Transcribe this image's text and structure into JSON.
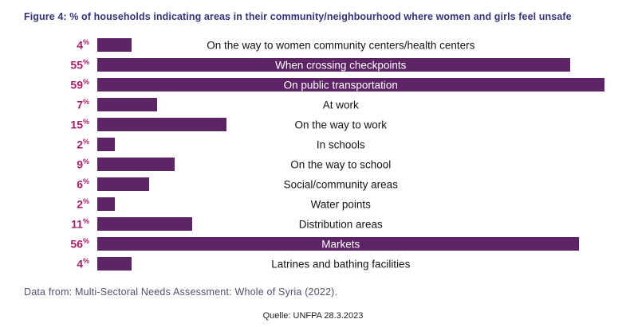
{
  "figure": {
    "title": "Figure 4: % of households indicating areas in their community/neighbourhood where women and girls feel unsafe",
    "source_note": "Data from: Multi-Sectoral Needs Assessment: Whole of Syria (2022).",
    "caption": "Quelle: UNFPA 28.3.2023"
  },
  "chart_data": {
    "type": "bar",
    "orientation": "horizontal",
    "title": "Figure 4: % of households indicating areas in their community/neighbourhood where women and girls feel unsafe",
    "categories": [
      "On the way to women community centers/health centers",
      "When crossing checkpoints",
      "On public transportation",
      "At work",
      "On the way to work",
      "In schools",
      "On the way to school",
      "Social/community areas",
      "Water points",
      "Distribution areas",
      "Markets",
      "Latrines and bathing facilities"
    ],
    "values": [
      4,
      55,
      59,
      7,
      15,
      2,
      9,
      6,
      2,
      11,
      56,
      4
    ],
    "value_suffix": "%",
    "xlim": [
      0,
      59
    ],
    "grid": false,
    "legend": false,
    "bar_color": "#5e2566",
    "value_label_color": "#a61e68",
    "title_color": "#33337e",
    "category_label_color": "#141414",
    "category_label_inside_color": "#ffffff"
  }
}
